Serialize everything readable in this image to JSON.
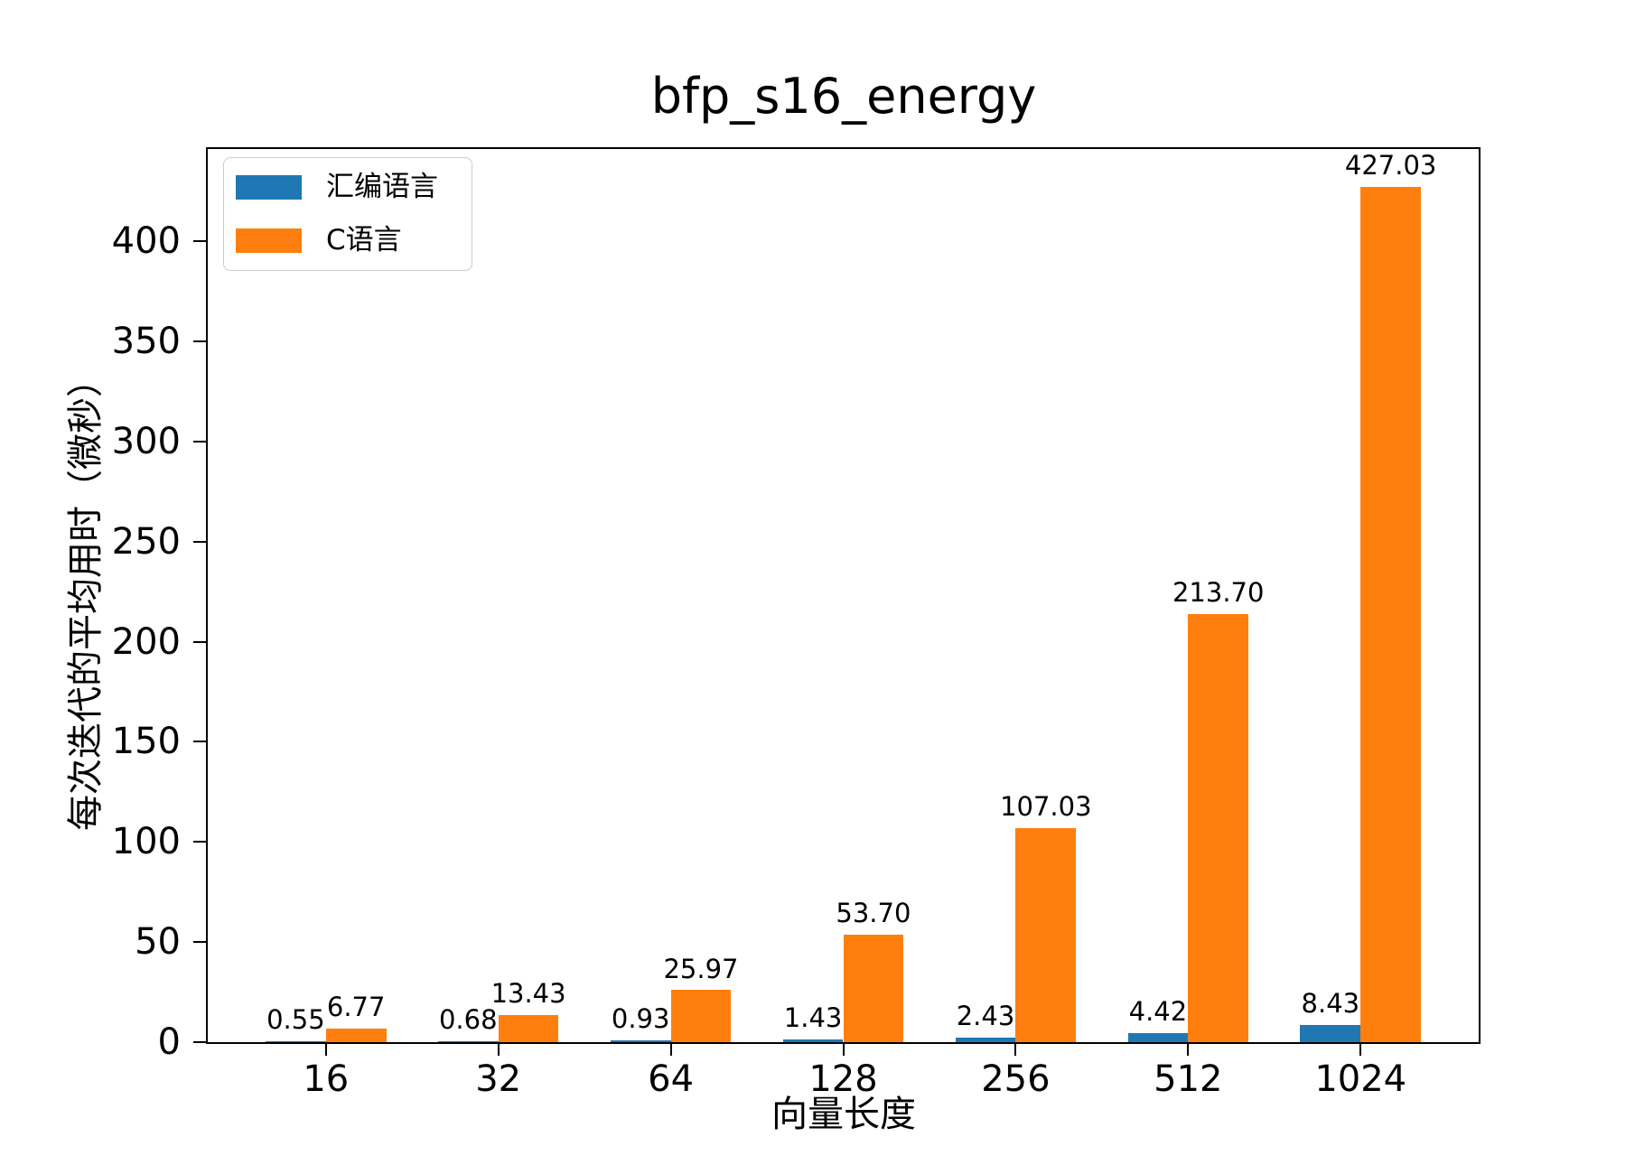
{
  "chart_data": {
    "type": "bar",
    "title": "bfp_s16_energy",
    "xlabel": "向量长度",
    "ylabel": "每次迭代的平均用时（微秒）",
    "categories": [
      "16",
      "32",
      "64",
      "128",
      "256",
      "512",
      "1024"
    ],
    "series": [
      {
        "name": "汇编语言",
        "color": "#1f77b4",
        "values": [
          0.55,
          0.68,
          0.93,
          1.43,
          2.43,
          4.42,
          8.43
        ],
        "labels": [
          "0.55",
          "0.68",
          "0.93",
          "1.43",
          "2.43",
          "4.42",
          "8.43"
        ]
      },
      {
        "name": "C语言",
        "color": "#ff7f0e",
        "values": [
          6.77,
          13.43,
          25.97,
          53.7,
          107.03,
          213.7,
          427.03
        ],
        "labels": [
          "6.77",
          "13.43",
          "25.97",
          "53.70",
          "107.03",
          "213.70",
          "427.03"
        ]
      }
    ],
    "yticks": [
      0,
      50,
      100,
      150,
      200,
      250,
      300,
      350,
      400
    ],
    "ylim": [
      0,
      446
    ],
    "xlim": [
      -0.685,
      6.685
    ],
    "bar_width": 0.35,
    "grid": false,
    "legend": {
      "position": "upper left",
      "entries": [
        "汇编语言",
        "C语言"
      ]
    }
  }
}
